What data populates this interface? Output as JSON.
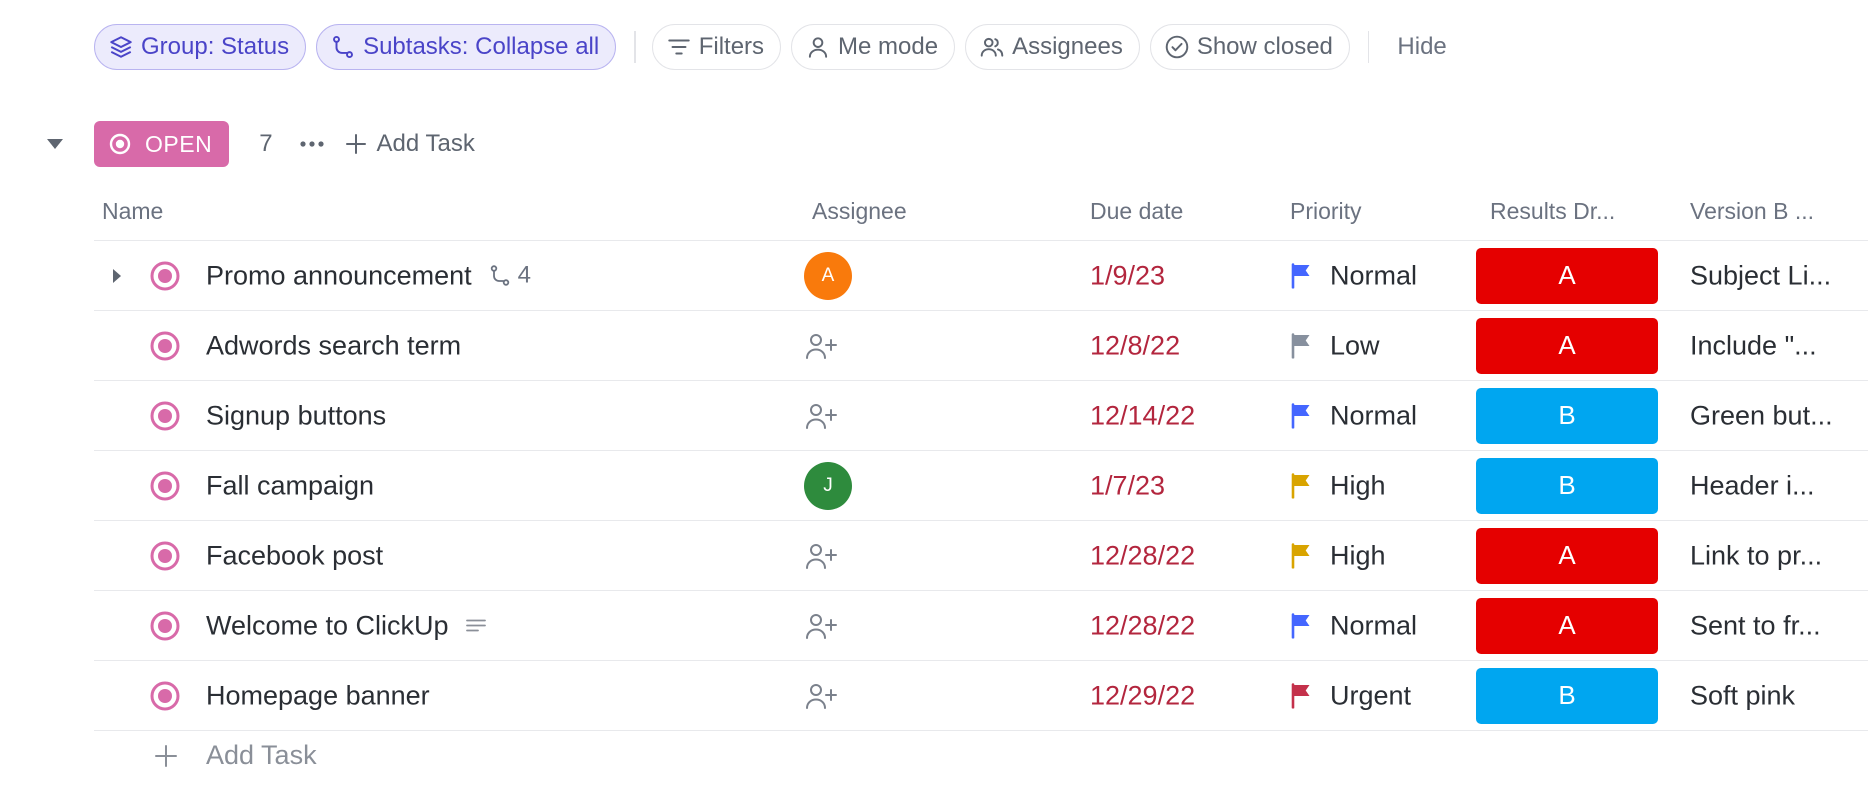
{
  "toolbar": {
    "group": "Group: Status",
    "subtasks": "Subtasks: Collapse all",
    "filters": "Filters",
    "me_mode": "Me mode",
    "assignees": "Assignees",
    "show_closed": "Show closed",
    "hide": "Hide"
  },
  "group": {
    "status": "OPEN",
    "count": "7",
    "add_task": "Add Task",
    "color": "#d86aa9"
  },
  "columns": {
    "name": "Name",
    "assignee": "Assignee",
    "due_date": "Due date",
    "priority": "Priority",
    "results": "Results Dr...",
    "version_b": "Version B ..."
  },
  "tasks": [
    {
      "name": "Promo announcement",
      "subtasks": "4",
      "assignee": "A",
      "due": "1/9/23",
      "priority": "Normal",
      "result": "A",
      "version_b": "Subject Li..."
    },
    {
      "name": "Adwords search term",
      "due": "12/8/22",
      "priority": "Low",
      "result": "A",
      "version_b": "Include \"..."
    },
    {
      "name": "Signup buttons",
      "due": "12/14/22",
      "priority": "Normal",
      "result": "B",
      "version_b": "Green but..."
    },
    {
      "name": "Fall campaign",
      "assignee": "J",
      "due": "1/7/23",
      "priority": "High",
      "result": "B",
      "version_b": "Header i..."
    },
    {
      "name": "Facebook post",
      "due": "12/28/22",
      "priority": "High",
      "result": "A",
      "version_b": "Link to pr..."
    },
    {
      "name": "Welcome to ClickUp",
      "due": "12/28/22",
      "priority": "Normal",
      "result": "A",
      "version_b": "Sent to fr..."
    },
    {
      "name": "Homepage banner",
      "due": "12/29/22",
      "priority": "Urgent",
      "result": "B",
      "version_b": "Soft pink"
    }
  ],
  "footer": {
    "add_task": "Add Task"
  },
  "colors": {
    "accent": "#4a44c8",
    "due_overdue": "#b3263e",
    "priority_normal": "#4466ff",
    "priority_low": "#87909e",
    "priority_high": "#d9a400",
    "priority_urgent": "#c4314b",
    "result_a": "#e50000",
    "result_b": "#00a6f0",
    "avatar_a": "#f97a0c",
    "avatar_j": "#2e8b3d"
  }
}
